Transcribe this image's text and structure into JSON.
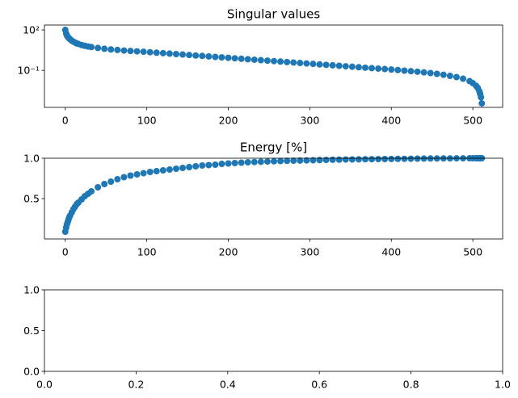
{
  "chart_data": [
    {
      "type": "scatter",
      "title": "Singular values",
      "yscale": "log",
      "color": "#1f77b4",
      "x": [
        0,
        1,
        2,
        3,
        4,
        5,
        6,
        8,
        10,
        12,
        14,
        16,
        20,
        24,
        28,
        32,
        40,
        48,
        56,
        64,
        72,
        80,
        88,
        96,
        104,
        112,
        120,
        128,
        136,
        144,
        152,
        160,
        168,
        176,
        184,
        192,
        200,
        208,
        216,
        224,
        232,
        240,
        248,
        256,
        264,
        272,
        280,
        288,
        296,
        304,
        312,
        320,
        328,
        336,
        344,
        352,
        360,
        368,
        376,
        384,
        392,
        400,
        408,
        416,
        424,
        432,
        440,
        448,
        456,
        464,
        472,
        480,
        488,
        496,
        500,
        504,
        506,
        508,
        509,
        510,
        511
      ],
      "values": [
        100,
        56.2,
        39.8,
        31.6,
        26.3,
        22.9,
        20.0,
        15.8,
        13.5,
        11.5,
        10.0,
        9.12,
        7.59,
        6.61,
        5.89,
        5.37,
        4.57,
        3.98,
        3.55,
        3.24,
        2.95,
        2.75,
        2.57,
        2.4,
        2.21,
        2.05,
        1.89,
        1.74,
        1.61,
        1.49,
        1.37,
        1.26,
        1.17,
        1.08,
        0.995,
        0.918,
        0.849,
        0.783,
        0.723,
        0.667,
        0.617,
        0.569,
        0.525,
        0.485,
        0.448,
        0.413,
        0.381,
        0.352,
        0.325,
        0.3,
        0.277,
        0.256,
        0.236,
        0.218,
        0.201,
        0.186,
        0.171,
        0.158,
        0.146,
        0.135,
        0.125,
        0.115,
        0.105,
        0.0955,
        0.0871,
        0.0794,
        0.0708,
        0.0631,
        0.055,
        0.0468,
        0.0389,
        0.0316,
        0.024,
        0.0158,
        0.0112,
        0.00708,
        0.00501,
        0.00282,
        0.00178,
        0.001,
        0.000355
      ],
      "xlim": [
        -25.55,
        536.55
      ],
      "ylim": [
        0.00018,
        230
      ],
      "xticks": [
        0,
        100,
        200,
        300,
        400,
        500
      ],
      "yticks": [
        {
          "value": 100,
          "label": "10²"
        },
        {
          "value": 0.1,
          "label": "10⁻¹"
        }
      ]
    },
    {
      "type": "scatter",
      "title": "Energy [%]",
      "color": "#1f77b4",
      "x": [
        0,
        1,
        2,
        3,
        4,
        5,
        6,
        8,
        10,
        12,
        14,
        16,
        20,
        24,
        28,
        32,
        40,
        48,
        56,
        64,
        72,
        80,
        88,
        96,
        104,
        112,
        120,
        128,
        136,
        144,
        152,
        160,
        168,
        176,
        184,
        192,
        200,
        208,
        216,
        224,
        232,
        240,
        248,
        256,
        264,
        272,
        280,
        288,
        296,
        304,
        312,
        320,
        328,
        336,
        344,
        352,
        360,
        368,
        376,
        384,
        392,
        400,
        408,
        416,
        424,
        432,
        440,
        448,
        456,
        464,
        472,
        480,
        488,
        496,
        500,
        504,
        506,
        508,
        509,
        510,
        511
      ],
      "values": [
        0.09,
        0.14,
        0.18,
        0.21,
        0.24,
        0.27,
        0.29,
        0.33,
        0.37,
        0.4,
        0.43,
        0.45,
        0.49,
        0.53,
        0.56,
        0.59,
        0.64,
        0.68,
        0.71,
        0.74,
        0.765,
        0.785,
        0.8,
        0.815,
        0.83,
        0.84,
        0.85,
        0.86,
        0.87,
        0.88,
        0.89,
        0.9,
        0.91,
        0.915,
        0.92,
        0.93,
        0.935,
        0.94,
        0.945,
        0.95,
        0.953,
        0.956,
        0.959,
        0.962,
        0.965,
        0.967,
        0.969,
        0.971,
        0.973,
        0.975,
        0.977,
        0.979,
        0.981,
        0.982,
        0.984,
        0.985,
        0.986,
        0.987,
        0.988,
        0.989,
        0.99,
        0.991,
        0.992,
        0.993,
        0.994,
        0.995,
        0.996,
        0.997,
        0.997,
        0.998,
        0.998,
        0.999,
        0.999,
        1.0,
        1.0,
        1.0,
        1.0,
        1.0,
        1.0,
        1.0,
        1.0
      ],
      "xlim": [
        -25.55,
        536.55
      ],
      "ylim": [
        0,
        1
      ],
      "xticks": [
        0,
        100,
        200,
        300,
        400,
        500
      ],
      "yticks": [
        0.5,
        {
          "value": 1,
          "label": "1.0"
        }
      ]
    },
    {
      "type": "empty",
      "xlim": [
        0,
        1
      ],
      "ylim": [
        0,
        1
      ],
      "xticks": [
        {
          "value": 0,
          "label": "0.0"
        },
        0.2,
        0.4,
        0.6,
        0.8,
        {
          "value": 1,
          "label": "1.0"
        }
      ],
      "yticks": [
        {
          "value": 0,
          "label": "0.0"
        },
        0.5,
        {
          "value": 1,
          "label": "1.0"
        }
      ]
    }
  ]
}
